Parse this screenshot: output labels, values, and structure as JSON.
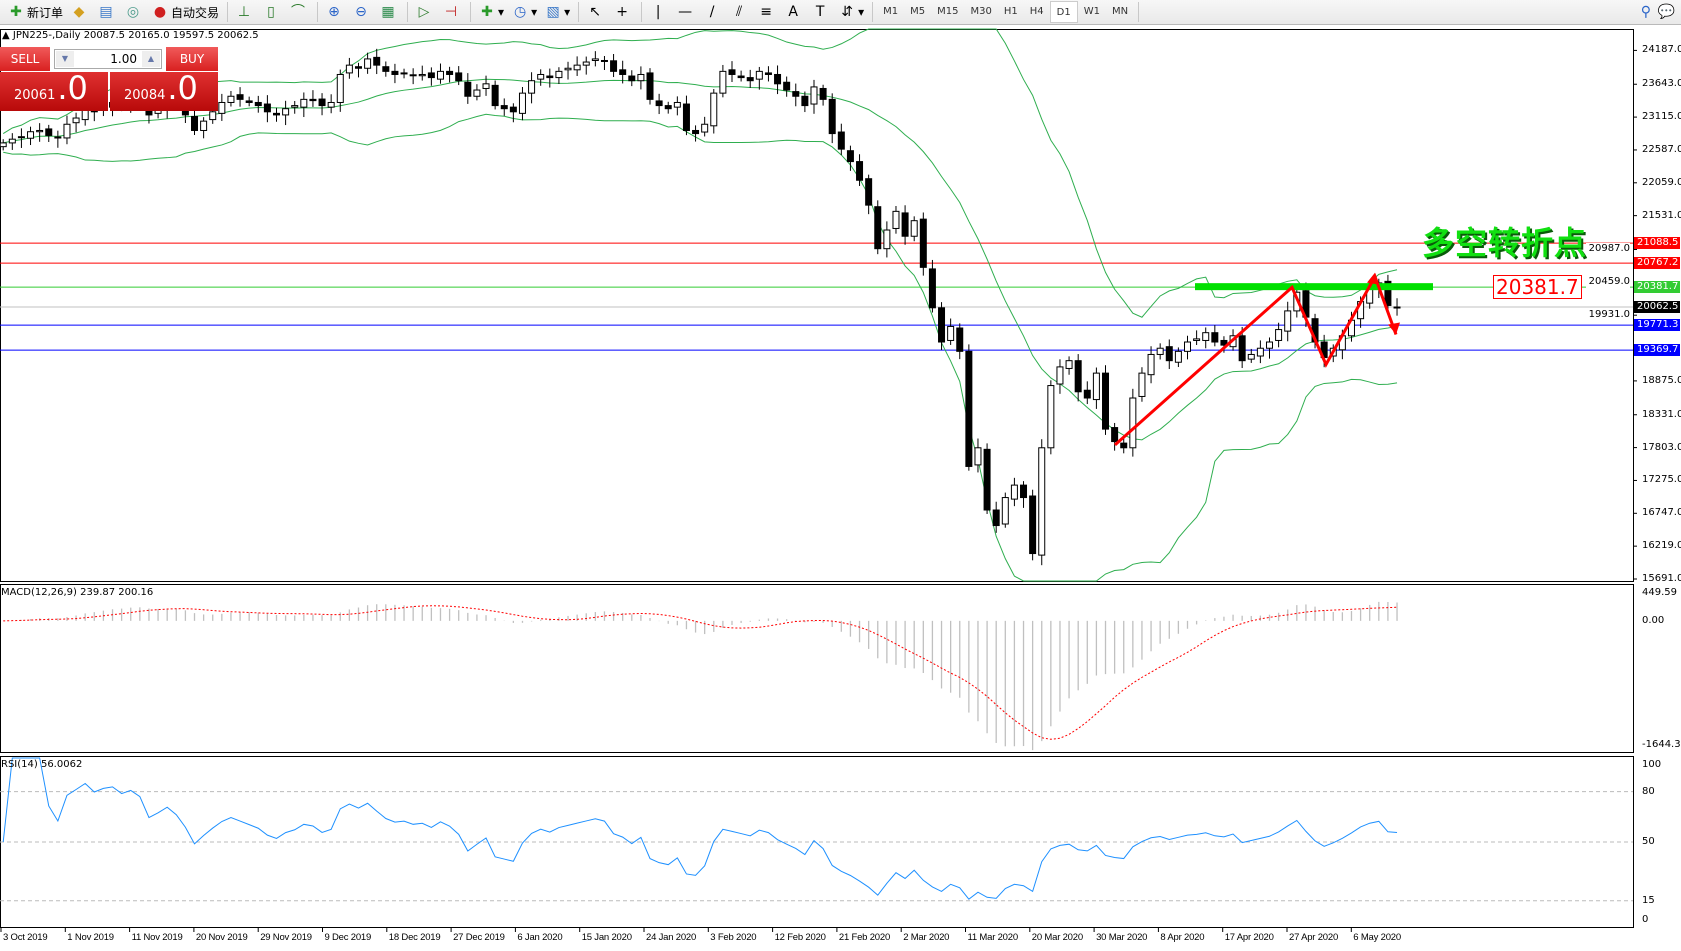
{
  "toolbar": {
    "new_order": "新订单",
    "auto_trading": "自动交易",
    "timeframes": [
      "M1",
      "M5",
      "M15",
      "M30",
      "H1",
      "H4",
      "D1",
      "W1",
      "MN"
    ],
    "active_timeframe": "D1"
  },
  "chart": {
    "info": "JPN225-,Daily  20087.5 20165.0 19597.5 20062.5"
  },
  "trade_panel": {
    "sell_label": "SELL",
    "buy_label": "BUY",
    "lot": "1.00",
    "sell_price_main": "20061",
    "sell_price_frac": ".0",
    "buy_price_main": "20084",
    "buy_price_frac": ".0"
  },
  "annotation": {
    "text": "多空转折点",
    "price_label": "20381.7"
  },
  "price_axis": [
    "24187.0",
    "23643.0",
    "23115.0",
    "22587.0",
    "22059.0",
    "21531.0",
    "20987.0",
    "20459.0",
    "19931.0",
    "18875.0",
    "18331.0",
    "17803.0",
    "17275.0",
    "16747.0",
    "16219.0",
    "15691.0"
  ],
  "price_tags": [
    {
      "value": "21088.5",
      "color": "#ff0000"
    },
    {
      "value": "20767.2",
      "color": "#ff0000"
    },
    {
      "value": "20381.7",
      "color": "#33cc33"
    },
    {
      "value": "20062.5",
      "color": "#000000"
    },
    {
      "value": "19771.3",
      "color": "#0000ff"
    },
    {
      "value": "19369.7",
      "color": "#0000ff"
    }
  ],
  "macd": {
    "label": "MACD(12,26,9) 239.87 200.16",
    "axis": [
      "449.59",
      "0.00",
      "-1644.35"
    ]
  },
  "rsi": {
    "label": "RSI(14) 56.0062",
    "axis": [
      "100",
      "80",
      "50",
      "15",
      "0"
    ]
  },
  "dates": [
    "3 Oct 2019",
    "1 Nov 2019",
    "11 Nov 2019",
    "20 Nov 2019",
    "29 Nov 2019",
    "9 Dec 2019",
    "18 Dec 2019",
    "27 Dec 2019",
    "6 Jan 2020",
    "15 Jan 2020",
    "24 Jan 2020",
    "3 Feb 2020",
    "12 Feb 2020",
    "21 Feb 2020",
    "2 Mar 2020",
    "11 Mar 2020",
    "20 Mar 2020",
    "30 Mar 2020",
    "8 Apr 2020",
    "17 Apr 2020",
    "27 Apr 2020",
    "6 May 2020"
  ],
  "chart_data": {
    "type": "candlestick",
    "symbol": "JPN225-",
    "timeframe": "Daily",
    "ylim": [
      15691,
      24187
    ],
    "close": [
      22700,
      22760,
      22800,
      22880,
      22900,
      22820,
      22780,
      23000,
      23100,
      23250,
      23200,
      23300,
      23350,
      23300,
      23400,
      23350,
      23150,
      23250,
      23380,
      23300,
      23150,
      22900,
      23050,
      23200,
      23350,
      23450,
      23400,
      23350,
      23300,
      23200,
      23150,
      23250,
      23300,
      23400,
      23380,
      23300,
      23350,
      23800,
      23950,
      23900,
      24050,
      23950,
      23850,
      23800,
      23820,
      23780,
      23800,
      23750,
      23850,
      23800,
      23700,
      23450,
      23550,
      23650,
      23300,
      23250,
      23200,
      23500,
      23700,
      23800,
      23750,
      23850,
      23900,
      23950,
      24000,
      24050,
      24020,
      23850,
      23800,
      23700,
      23800,
      23400,
      23300,
      23250,
      23350,
      22900,
      22850,
      23000,
      23500,
      23850,
      23800,
      23750,
      23700,
      23850,
      23800,
      23650,
      23550,
      23450,
      23300,
      23600,
      23400,
      22850,
      22600,
      22400,
      22100,
      21700,
      21000,
      21300,
      21600,
      21200,
      21450,
      20700,
      20050,
      19500,
      19750,
      19350,
      17500,
      17800,
      16800,
      16550,
      17000,
      17200,
      17000,
      16100,
      17800,
      18800,
      19100,
      19200,
      18700,
      18600,
      19000,
      18100,
      17900,
      17800,
      18600,
      19000,
      19300,
      19400,
      19200,
      19350,
      19500,
      19550,
      19650,
      19500,
      19450,
      19600,
      19200,
      19300,
      19400,
      19500,
      19700,
      20000,
      20300,
      19900,
      19500,
      19250,
      19400,
      19600,
      19850,
      20150,
      20350,
      20450,
      20087.5,
      20062.5
    ],
    "horizontal_lines": [
      21088.5,
      20767.2,
      20381.7,
      20062.5,
      19771.3,
      19369.7
    ],
    "indicators": [
      "Bollinger Bands",
      "MACD(12,26,9)",
      "RSI(14)"
    ],
    "colors": {
      "bands": "#2fae4f",
      "macd_hist": "#c0c0c0",
      "macd_signal": "#ff0000",
      "rsi": "#1e90ff",
      "trend": "#ff0000",
      "level": "#00e000"
    }
  }
}
